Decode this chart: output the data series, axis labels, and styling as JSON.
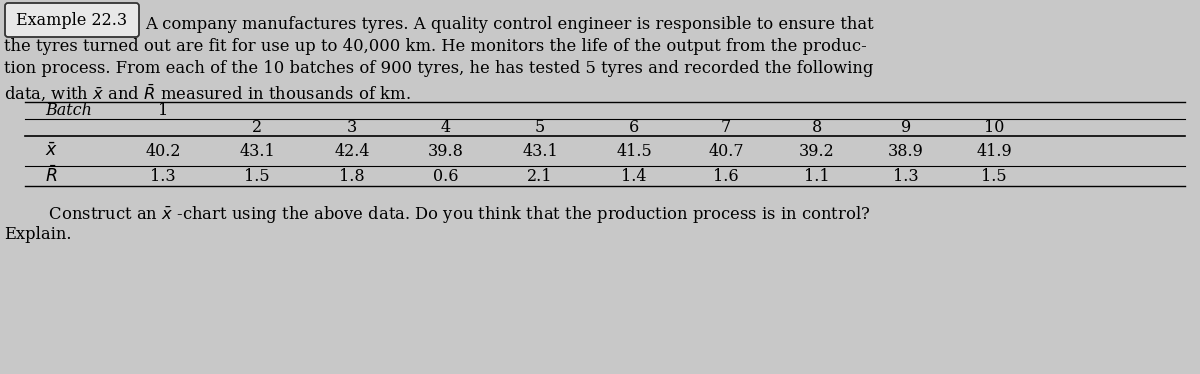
{
  "example_label": "Example 22.3",
  "para_line1": "A company manufactures tyres. A quality control engineer is responsible to ensure that",
  "para_line2": "the tyres turned out are fit for use up to 40,000 km. He monitors the life of the output from the produc-",
  "para_line3": "tion process. From each of the 10 batches of 900 tyres, he has tested 5 tyres and recorded the following",
  "para_line4": "data, with $\\bar{x}$ and $\\bar{R}$ measured in thousands of km.",
  "footer_line1": "    Construct an $\\bar{x}$ -chart using the above data. Do you think that the production process is in control?",
  "footer_line2": "Explain.",
  "batches": [
    1,
    2,
    3,
    4,
    5,
    6,
    7,
    8,
    9,
    10
  ],
  "x_bar": [
    40.2,
    43.1,
    42.4,
    39.8,
    43.1,
    41.5,
    40.7,
    39.2,
    38.9,
    41.9
  ],
  "R_bar": [
    1.3,
    1.5,
    1.8,
    0.6,
    2.1,
    1.4,
    1.6,
    1.1,
    1.3,
    1.5
  ],
  "bg_color": "#c8c8c8",
  "font_size": 11.8,
  "table_font_size": 11.5
}
